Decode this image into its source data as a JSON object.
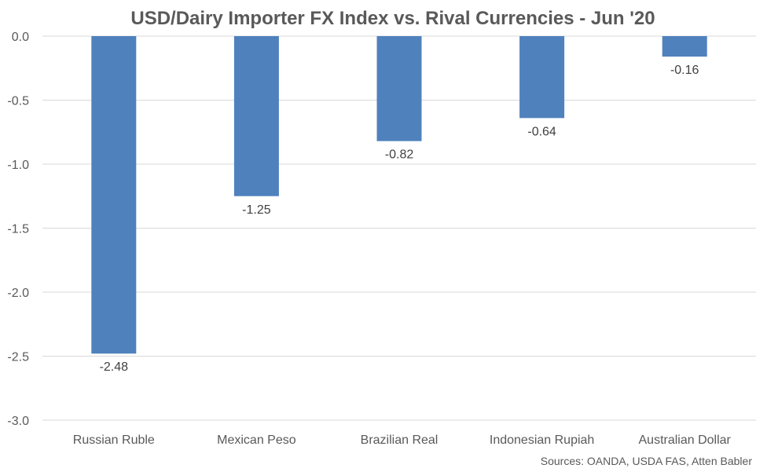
{
  "chart_data": {
    "type": "bar",
    "title": "USD/Dairy Importer FX Index vs. Rival Currencies - Jun '20",
    "categories": [
      "Russian Ruble",
      "Mexican Peso",
      "Brazilian Real",
      "Indonesian Rupiah",
      "Australian Dollar"
    ],
    "values": [
      -2.48,
      -1.25,
      -0.82,
      -0.64,
      -0.16
    ],
    "data_labels": [
      "-2.48",
      "-1.25",
      "-0.82",
      "-0.64",
      "-0.16"
    ],
    "y_ticks": [
      "0.0",
      "-0.5",
      "-1.0",
      "-1.5",
      "-2.0",
      "-2.5",
      "-3.0"
    ],
    "ylim": [
      -3.0,
      0.0
    ],
    "grid": true,
    "bar_color": "#4f81bd",
    "source": "Sources: OANDA, USDA FAS, Atten Babler"
  }
}
